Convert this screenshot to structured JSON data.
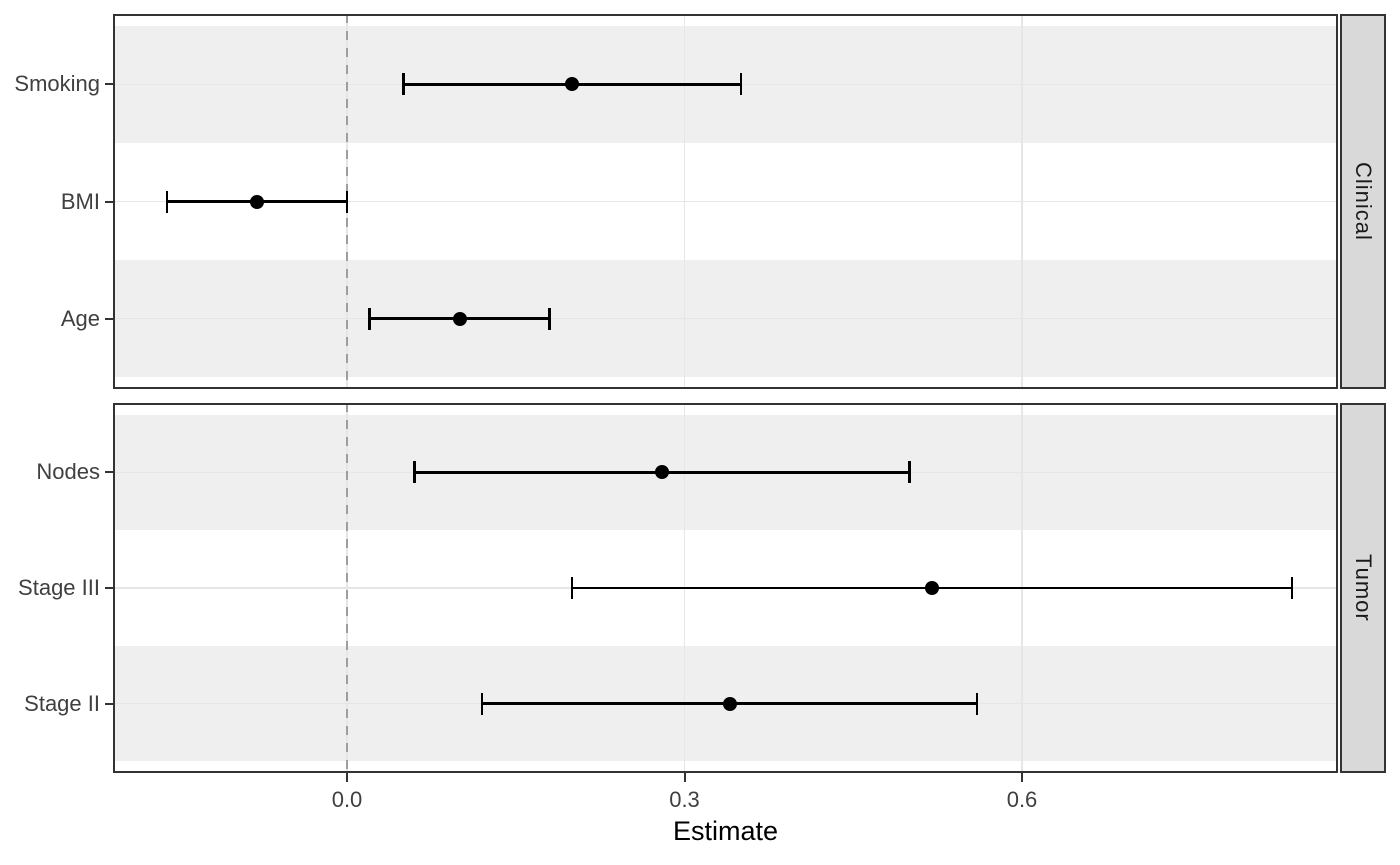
{
  "chart_data": {
    "type": "scatter",
    "subtype": "forest-plot: point estimates with horizontal CI error bars, 2 row-facets",
    "title": "",
    "xlabel": "Estimate",
    "ylabel": "",
    "xlim": [
      -0.21,
      0.88
    ],
    "x_ticks": [
      0,
      0.3,
      0.6
    ],
    "x_tick_labels": [
      "0.0",
      "0.3",
      "0.6"
    ],
    "reference_line": {
      "x": 0,
      "style": "dashed"
    },
    "grid": "major vertical gridlines at x ticks, horizontal gridline at each row",
    "legend": "none",
    "facets": [
      {
        "label": "Clinical",
        "rows": [
          {
            "label": "Smoking",
            "estimate": 0.2,
            "ci_low": 0.05,
            "ci_high": 0.35
          },
          {
            "label": "BMI",
            "estimate": -0.08,
            "ci_low": -0.16,
            "ci_high": 0.0
          },
          {
            "label": "Age",
            "estimate": 0.1,
            "ci_low": 0.02,
            "ci_high": 0.18
          }
        ]
      },
      {
        "label": "Tumor",
        "rows": [
          {
            "label": "Nodes",
            "estimate": 0.28,
            "ci_low": 0.06,
            "ci_high": 0.5
          },
          {
            "label": "Stage III",
            "estimate": 0.52,
            "ci_low": 0.2,
            "ci_high": 0.84
          },
          {
            "label": "Stage II",
            "estimate": 0.34,
            "ci_low": 0.12,
            "ci_high": 0.56
          }
        ]
      }
    ],
    "colors": {
      "point": "#000000",
      "error_bar": "#000000",
      "stripe": "#EFEFEF",
      "panel_bg": "#FFFFFF",
      "panel_border": "#333333",
      "gridline": "#E6E6E6",
      "reference_line": "#9E9E9E",
      "strip_bg": "#D9D9D9",
      "strip_text": "#1A1A1A",
      "axis_text": "#404040",
      "axis_title": "#000000",
      "tick_mark": "#333333"
    }
  }
}
